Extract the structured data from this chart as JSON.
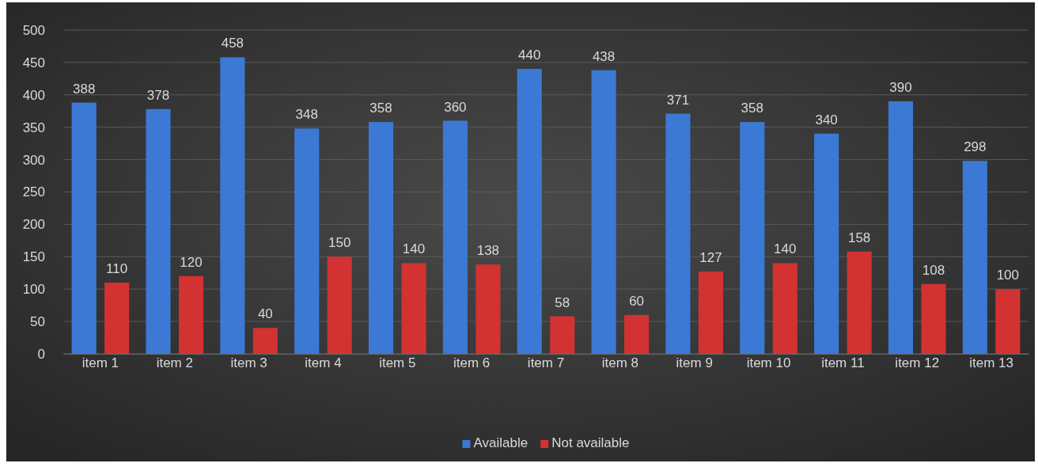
{
  "chart_data": {
    "type": "bar",
    "categories": [
      "item 1",
      "item 2",
      "item 3",
      "item 4",
      "item 5",
      "item 6",
      "item 7",
      "item 8",
      "item 9",
      "item 10",
      "item 11",
      "item 12",
      "item 13"
    ],
    "series": [
      {
        "name": "Available",
        "color": "#3b79d4",
        "values": [
          388,
          378,
          458,
          348,
          358,
          360,
          440,
          438,
          371,
          358,
          340,
          390,
          298
        ]
      },
      {
        "name": "Not available",
        "color": "#d23232",
        "values": [
          110,
          120,
          40,
          150,
          140,
          138,
          58,
          60,
          127,
          140,
          158,
          108,
          100
        ]
      }
    ],
    "ylim": [
      0,
      500
    ],
    "yticks": [
      0,
      50,
      100,
      150,
      200,
      250,
      300,
      350,
      400,
      450,
      500
    ],
    "grid": "y",
    "legend": "bottom",
    "data_labels": true
  }
}
